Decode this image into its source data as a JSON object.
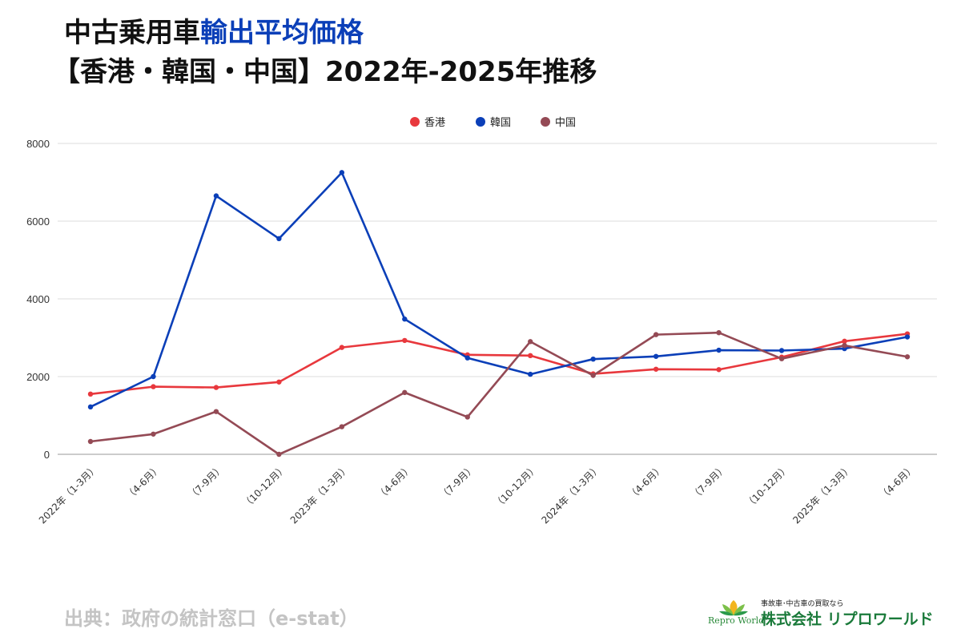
{
  "title": {
    "line1_plain": "中古乗用車",
    "line1_accent": "輸出平均価格",
    "line2": "【香港・韓国・中国】2022年-2025年推移"
  },
  "source": "出典：政府の統計窓口（e-stat）",
  "logo": {
    "brand": "Repro World",
    "tagline": "事故車･中古車の買取なら",
    "company": "株式会社 リプロワールド"
  },
  "chart_data": {
    "type": "line",
    "title": "",
    "xlabel": "",
    "ylabel": "",
    "ylim": [
      0,
      8000
    ],
    "yticks": [
      0,
      2000,
      4000,
      6000,
      8000
    ],
    "grid": true,
    "legend_position": "top-center",
    "categories": [
      "2022年（1-3月）",
      "（4-6月）",
      "（7-9月）",
      "（10-12月）",
      "2023年（1-3月）",
      "（4-6月）",
      "（7-9月）",
      "（10-12月）",
      "2024年（1-3月）",
      "（4-6月）",
      "（7-9月）",
      "（10-12月）",
      "2025年（1-3月）",
      "（4-6月）"
    ],
    "series": [
      {
        "name": "香港",
        "color": "#e8383d",
        "values": [
          1550,
          1740,
          1720,
          1860,
          2750,
          2930,
          2560,
          2540,
          2070,
          2190,
          2180,
          2500,
          2910,
          3100
        ]
      },
      {
        "name": "韓国",
        "color": "#0b3fb8",
        "values": [
          1220,
          2000,
          6650,
          5550,
          7250,
          3480,
          2480,
          2060,
          2450,
          2520,
          2680,
          2670,
          2720,
          3020
        ]
      },
      {
        "name": "中国",
        "color": "#944a55",
        "values": [
          330,
          520,
          1100,
          0,
          710,
          1590,
          960,
          2900,
          2030,
          3080,
          3130,
          2460,
          2800,
          2510
        ]
      }
    ]
  }
}
